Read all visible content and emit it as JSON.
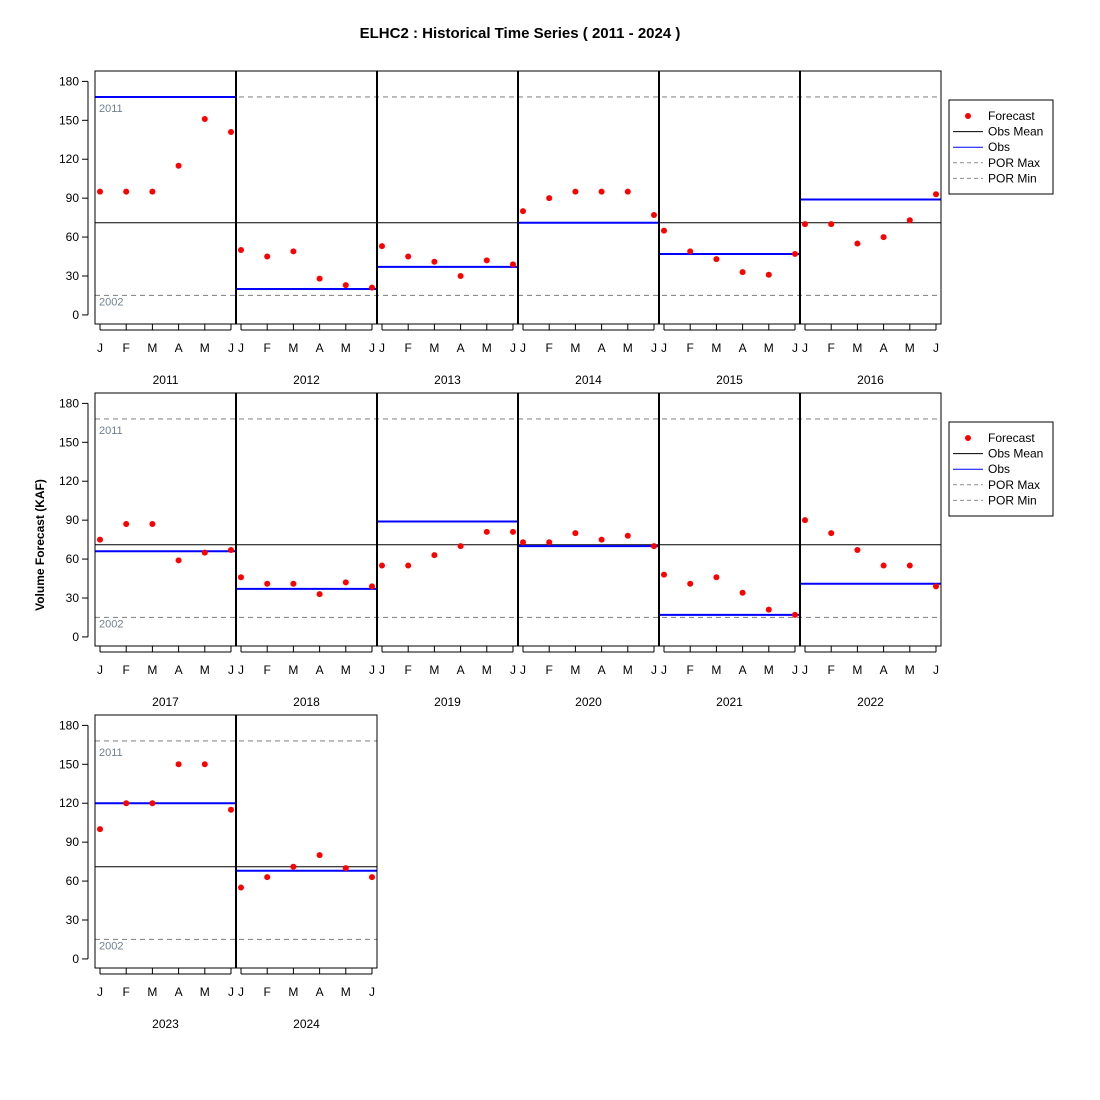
{
  "chart_data": {
    "type": "scatter",
    "title": "ELHC2 : Historical Time Series ( 2011 - 2024 )",
    "ylabel": "Volume Forecast (KAF)",
    "ylim": [
      -7,
      188
    ],
    "y_ticks": [
      0,
      30,
      60,
      90,
      120,
      150,
      180
    ],
    "month_ticks": [
      "J",
      "F",
      "M",
      "A",
      "M",
      "J"
    ],
    "obs_mean": 71,
    "por_max": {
      "value": 168,
      "label": "2011"
    },
    "por_min": {
      "value": 15,
      "label": "2002"
    },
    "legend": {
      "position": "right",
      "entries": [
        "Forecast",
        "Obs Mean",
        "Obs",
        "POR Max",
        "POR Min"
      ]
    },
    "colors": {
      "forecast": "#ff0000",
      "obs": "#0000ff",
      "obs_mean": "#000000",
      "por": "#8c8c8c",
      "por_label": "#708090"
    },
    "years": [
      {
        "year": "2011",
        "obs": 168,
        "forecast": [
          95,
          95,
          95,
          115,
          151,
          141
        ]
      },
      {
        "year": "2012",
        "obs": 20,
        "forecast": [
          50,
          45,
          49,
          28,
          23,
          21
        ]
      },
      {
        "year": "2013",
        "obs": 37,
        "forecast": [
          53,
          45,
          41,
          30,
          42,
          39
        ]
      },
      {
        "year": "2014",
        "obs": 71,
        "forecast": [
          80,
          90,
          95,
          95,
          95,
          77
        ]
      },
      {
        "year": "2015",
        "obs": 47,
        "forecast": [
          65,
          49,
          43,
          33,
          31,
          47
        ]
      },
      {
        "year": "2016",
        "obs": 89,
        "forecast": [
          70,
          70,
          55,
          60,
          73,
          93
        ]
      },
      {
        "year": "2017",
        "obs": 66,
        "forecast": [
          75,
          87,
          87,
          59,
          65,
          67
        ]
      },
      {
        "year": "2018",
        "obs": 37,
        "forecast": [
          46,
          41,
          41,
          33,
          42,
          39
        ]
      },
      {
        "year": "2019",
        "obs": 89,
        "forecast": [
          55,
          55,
          63,
          70,
          81,
          81
        ]
      },
      {
        "year": "2020",
        "obs": 70,
        "forecast": [
          73,
          73,
          80,
          75,
          78,
          70
        ]
      },
      {
        "year": "2021",
        "obs": 17,
        "forecast": [
          48,
          41,
          46,
          34,
          21,
          17
        ]
      },
      {
        "year": "2022",
        "obs": 41,
        "forecast": [
          90,
          80,
          67,
          55,
          55,
          39
        ]
      },
      {
        "year": "2023",
        "obs": 120,
        "forecast": [
          100,
          120,
          120,
          150,
          150,
          115
        ]
      },
      {
        "year": "2024",
        "obs": 68,
        "forecast": [
          55,
          63,
          71,
          80,
          70,
          63
        ]
      }
    ]
  }
}
